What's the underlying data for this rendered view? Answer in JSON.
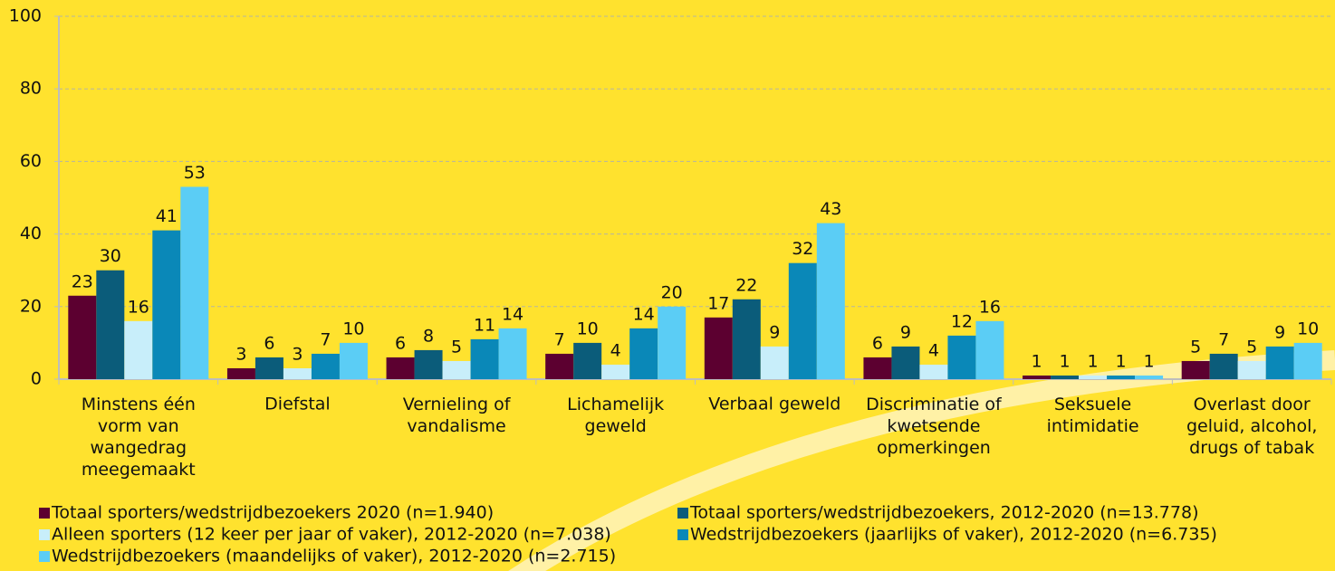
{
  "chart_data": {
    "type": "bar",
    "categories": [
      "Minstens één\nvorm van\nwangedrag\nmeegemaakt",
      "Diefstal",
      "Vernieling of\nvandalisme",
      "Lichamelijk\ngeweld",
      "Verbaal geweld",
      "Discriminatie of\nkwetsende\nopmerkingen",
      "Seksuele\nintimidatie",
      "Overlast door\ngeluid, alcohol,\ndrugs of tabak"
    ],
    "series": [
      {
        "name": "Totaal sporters/wedstrijdbezoekers 2020 (n=1.940)",
        "color": "#5c0030",
        "values": [
          23,
          3,
          6,
          7,
          17,
          6,
          1,
          5
        ]
      },
      {
        "name": "Totaal sporters/wedstrijdbezoekers, 2012-2020 (n=13.778)",
        "color": "#0b5c7a",
        "values": [
          30,
          6,
          8,
          10,
          22,
          9,
          1,
          7
        ]
      },
      {
        "name": "Alleen sporters (12 keer per jaar of vaker), 2012-2020 (n=7.038)",
        "color": "#c8eefa",
        "values": [
          16,
          3,
          5,
          4,
          9,
          4,
          1,
          5
        ]
      },
      {
        "name": "Wedstrijdbezoekers (jaarlijks of vaker), 2012-2020 (n=6.735)",
        "color": "#0a88b8",
        "values": [
          41,
          7,
          11,
          14,
          32,
          12,
          1,
          9
        ]
      },
      {
        "name": "Wedstrijdbezoekers (maandelijks of vaker), 2012-2020 (n=2.715)",
        "color": "#5bcdf5",
        "values": [
          53,
          10,
          14,
          20,
          43,
          16,
          1,
          10
        ]
      }
    ],
    "ylim": [
      0,
      100
    ],
    "yticks": [
      0,
      20,
      40,
      60,
      80,
      100
    ],
    "grid": true
  }
}
